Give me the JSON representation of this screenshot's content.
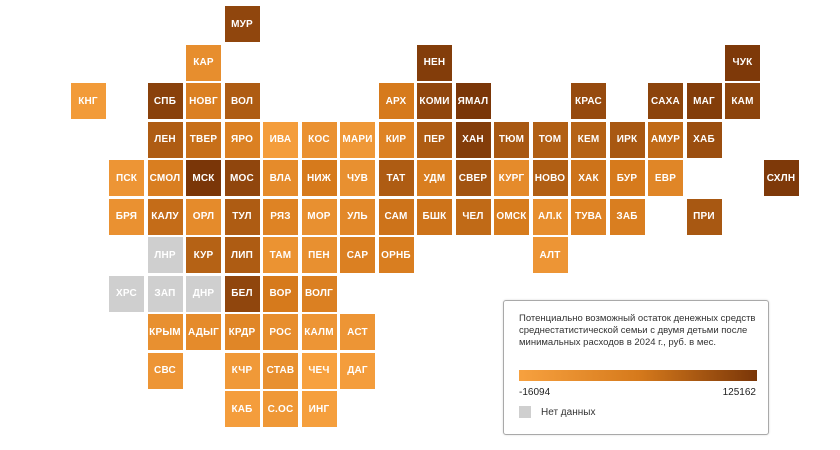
{
  "colors": {
    "low": "#f7a13f",
    "mid": "#d67a1c",
    "high": "#7a3608",
    "no_data": "#cfcfcf"
  },
  "legend": {
    "title": "Потенциально возможный остаток денежных средств среднестатистической семьи с двумя детьми после минимальных расходов в 2024 г., руб. в мес.",
    "min_label": "-16094",
    "max_label": "125162",
    "no_data_label": "Нет данных"
  },
  "regions": [
    {
      "code": "МУР",
      "row": 0,
      "col": 5,
      "level": 0.88
    },
    {
      "code": "КАР",
      "row": 1,
      "col": 4,
      "level": 0.25
    },
    {
      "code": "НЕН",
      "row": 1,
      "col": 10,
      "level": 0.95
    },
    {
      "code": "ЧУК",
      "row": 1,
      "col": 18,
      "level": 0.98
    },
    {
      "code": "КНГ",
      "row": 2,
      "col": 1,
      "level": 0.08
    },
    {
      "code": "СПБ",
      "row": 2,
      "col": 3,
      "level": 0.92
    },
    {
      "code": "НОВГ",
      "row": 2,
      "col": 4,
      "level": 0.42
    },
    {
      "code": "ВОЛ",
      "row": 2,
      "col": 5,
      "level": 0.72
    },
    {
      "code": "АРХ",
      "row": 2,
      "col": 9,
      "level": 0.5
    },
    {
      "code": "КОМИ",
      "row": 2,
      "col": 10,
      "level": 0.88
    },
    {
      "code": "ЯМАЛ",
      "row": 2,
      "col": 11,
      "level": 1.0
    },
    {
      "code": "КРАС",
      "row": 2,
      "col": 14,
      "level": 0.85
    },
    {
      "code": "САХА",
      "row": 2,
      "col": 16,
      "level": 0.9
    },
    {
      "code": "МАГ",
      "row": 2,
      "col": 17,
      "level": 0.95
    },
    {
      "code": "КАМ",
      "row": 2,
      "col": 18,
      "level": 0.9
    },
    {
      "code": "ЛЕН",
      "row": 3,
      "col": 3,
      "level": 0.72
    },
    {
      "code": "ТВЕР",
      "row": 3,
      "col": 4,
      "level": 0.58
    },
    {
      "code": "ЯРО",
      "row": 3,
      "col": 5,
      "level": 0.42
    },
    {
      "code": "ИВА",
      "row": 3,
      "col": 6,
      "level": 0.05
    },
    {
      "code": "КОС",
      "row": 3,
      "col": 7,
      "level": 0.2
    },
    {
      "code": "МАРИ",
      "row": 3,
      "col": 8,
      "level": 0.12
    },
    {
      "code": "КИР",
      "row": 3,
      "col": 9,
      "level": 0.38
    },
    {
      "code": "ПЕР",
      "row": 3,
      "col": 10,
      "level": 0.72
    },
    {
      "code": "ХАН",
      "row": 3,
      "col": 11,
      "level": 0.95
    },
    {
      "code": "ТЮМ",
      "row": 3,
      "col": 12,
      "level": 0.75
    },
    {
      "code": "ТОМ",
      "row": 3,
      "col": 13,
      "level": 0.7
    },
    {
      "code": "КЕМ",
      "row": 3,
      "col": 14,
      "level": 0.68
    },
    {
      "code": "ИРК",
      "row": 3,
      "col": 15,
      "level": 0.75
    },
    {
      "code": "АМУР",
      "row": 3,
      "col": 16,
      "level": 0.62
    },
    {
      "code": "ХАБ",
      "row": 3,
      "col": 17,
      "level": 0.82
    },
    {
      "code": "ПСК",
      "row": 4,
      "col": 2,
      "level": 0.15
    },
    {
      "code": "СМОЛ",
      "row": 4,
      "col": 3,
      "level": 0.45
    },
    {
      "code": "МСК",
      "row": 4,
      "col": 4,
      "level": 1.0
    },
    {
      "code": "МОС",
      "row": 4,
      "col": 5,
      "level": 0.88
    },
    {
      "code": "ВЛА",
      "row": 4,
      "col": 6,
      "level": 0.28
    },
    {
      "code": "НИЖ",
      "row": 4,
      "col": 7,
      "level": 0.5
    },
    {
      "code": "ЧУВ",
      "row": 4,
      "col": 8,
      "level": 0.22
    },
    {
      "code": "ТАТ",
      "row": 4,
      "col": 9,
      "level": 0.72
    },
    {
      "code": "УДМ",
      "row": 4,
      "col": 10,
      "level": 0.45
    },
    {
      "code": "СВЕР",
      "row": 4,
      "col": 11,
      "level": 0.78
    },
    {
      "code": "КУРГ",
      "row": 4,
      "col": 12,
      "level": 0.28
    },
    {
      "code": "НОВО",
      "row": 4,
      "col": 13,
      "level": 0.7
    },
    {
      "code": "ХАК",
      "row": 4,
      "col": 14,
      "level": 0.55
    },
    {
      "code": "БУР",
      "row": 4,
      "col": 15,
      "level": 0.5
    },
    {
      "code": "ЕВР",
      "row": 4,
      "col": 16,
      "level": 0.35
    },
    {
      "code": "СХЛН",
      "row": 4,
      "col": 19,
      "level": 0.98
    },
    {
      "code": "БРЯ",
      "row": 5,
      "col": 2,
      "level": 0.2
    },
    {
      "code": "КАЛУ",
      "row": 5,
      "col": 3,
      "level": 0.6
    },
    {
      "code": "ОРЛ",
      "row": 5,
      "col": 4,
      "level": 0.28
    },
    {
      "code": "ТУЛ",
      "row": 5,
      "col": 5,
      "level": 0.72
    },
    {
      "code": "РЯЗ",
      "row": 5,
      "col": 6,
      "level": 0.38
    },
    {
      "code": "МОР",
      "row": 5,
      "col": 7,
      "level": 0.22
    },
    {
      "code": "УЛЬ",
      "row": 5,
      "col": 8,
      "level": 0.32
    },
    {
      "code": "САМ",
      "row": 5,
      "col": 9,
      "level": 0.55
    },
    {
      "code": "БШК",
      "row": 5,
      "col": 10,
      "level": 0.55
    },
    {
      "code": "ЧЕЛ",
      "row": 5,
      "col": 11,
      "level": 0.62
    },
    {
      "code": "ОМСК",
      "row": 5,
      "col": 12,
      "level": 0.48
    },
    {
      "code": "АЛ.К",
      "row": 5,
      "col": 13,
      "level": 0.25
    },
    {
      "code": "ТУВА",
      "row": 5,
      "col": 14,
      "level": 0.38
    },
    {
      "code": "ЗАБ",
      "row": 5,
      "col": 15,
      "level": 0.45
    },
    {
      "code": "ПРИ",
      "row": 5,
      "col": 17,
      "level": 0.75
    },
    {
      "code": "ЛНР",
      "row": 6,
      "col": 3,
      "nodata": true
    },
    {
      "code": "КУР",
      "row": 6,
      "col": 4,
      "level": 0.68
    },
    {
      "code": "ЛИП",
      "row": 6,
      "col": 5,
      "level": 0.72
    },
    {
      "code": "ТАМ",
      "row": 6,
      "col": 6,
      "level": 0.18
    },
    {
      "code": "ПЕН",
      "row": 6,
      "col": 7,
      "level": 0.22
    },
    {
      "code": "САР",
      "row": 6,
      "col": 8,
      "level": 0.42
    },
    {
      "code": "ОРНБ",
      "row": 6,
      "col": 9,
      "level": 0.45
    },
    {
      "code": "АЛТ",
      "row": 6,
      "col": 13,
      "level": 0.15
    },
    {
      "code": "ХРС",
      "row": 7,
      "col": 2,
      "nodata": true
    },
    {
      "code": "ЗАП",
      "row": 7,
      "col": 3,
      "nodata": true
    },
    {
      "code": "ДНР",
      "row": 7,
      "col": 4,
      "nodata": true
    },
    {
      "code": "БЕЛ",
      "row": 7,
      "col": 5,
      "level": 0.88
    },
    {
      "code": "ВОР",
      "row": 7,
      "col": 6,
      "level": 0.5
    },
    {
      "code": "ВОЛГ",
      "row": 7,
      "col": 7,
      "level": 0.42
    },
    {
      "code": "КРЫМ",
      "row": 8,
      "col": 3,
      "level": 0.22
    },
    {
      "code": "АДЫГ",
      "row": 8,
      "col": 4,
      "level": 0.28
    },
    {
      "code": "КРДР",
      "row": 8,
      "col": 5,
      "level": 0.35
    },
    {
      "code": "РОС",
      "row": 8,
      "col": 6,
      "level": 0.25
    },
    {
      "code": "КАЛМ",
      "row": 8,
      "col": 7,
      "level": 0.15
    },
    {
      "code": "АСТ",
      "row": 8,
      "col": 8,
      "level": 0.15
    },
    {
      "code": "СВС",
      "row": 9,
      "col": 3,
      "level": 0.15
    },
    {
      "code": "КЧР",
      "row": 9,
      "col": 5,
      "level": 0.1
    },
    {
      "code": "СТАВ",
      "row": 9,
      "col": 6,
      "level": 0.22
    },
    {
      "code": "ЧЕЧ",
      "row": 9,
      "col": 7,
      "level": 0.0
    },
    {
      "code": "ДАГ",
      "row": 9,
      "col": 8,
      "level": 0.05
    },
    {
      "code": "КАБ",
      "row": 10,
      "col": 5,
      "level": 0.05
    },
    {
      "code": "С.ОС",
      "row": 10,
      "col": 6,
      "level": 0.12
    },
    {
      "code": "ИНГ",
      "row": 10,
      "col": 7,
      "level": 0.03
    }
  ]
}
